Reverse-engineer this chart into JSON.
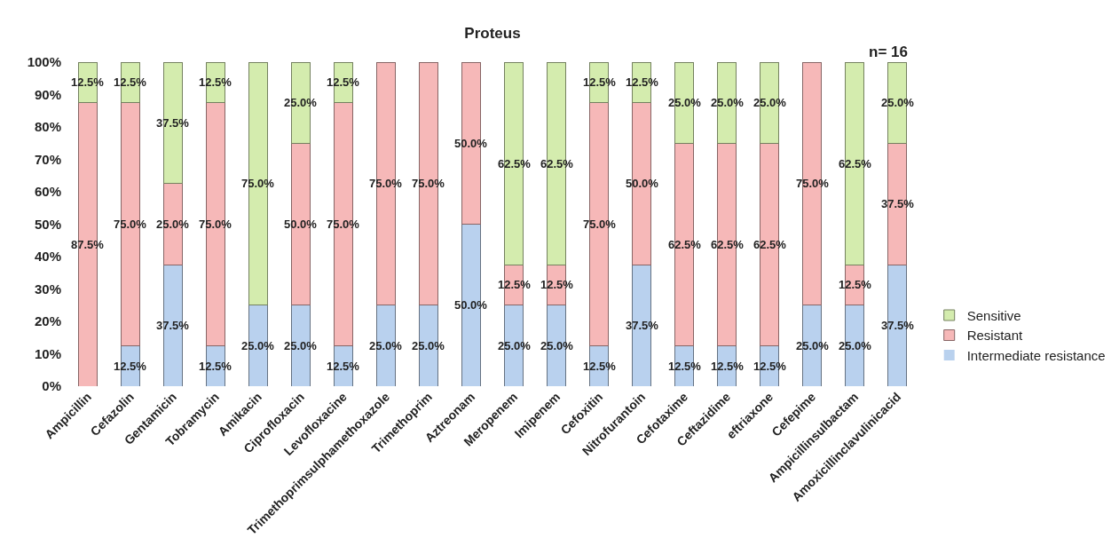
{
  "chart_data": {
    "type": "bar",
    "title": "Proteus",
    "stacked": true,
    "legend": "right",
    "annotations": [
      "n= 16"
    ],
    "categories": [
      "Ampicillin",
      "Cefazolin",
      "Gentamicin",
      "Tobramycin",
      "Amikacin",
      "Ciprofloxacin",
      "Levofloxacine",
      "Trimethoprimsulphamethoxazole",
      "Trimethoprim",
      "Aztreonam",
      "Meropenem",
      "Imipenem",
      "Cefoxitin",
      "Nitrofurantoin",
      "Cefotaxime",
      "Ceftazidime",
      "eftriaxone",
      "Cefepime",
      "Ampicillinsulbactam",
      "Amoxicillinclavulinicacid"
    ],
    "ylim": [
      0,
      100
    ],
    "yticks": [
      {
        "value": 0,
        "label": "0%"
      },
      {
        "value": 10,
        "label": "10%"
      },
      {
        "value": 20,
        "label": "20%"
      },
      {
        "value": 30,
        "label": "30%"
      },
      {
        "value": 40,
        "label": "40%"
      },
      {
        "value": 50,
        "label": "50%"
      },
      {
        "value": 60,
        "label": "60%"
      },
      {
        "value": 70,
        "label": "70%"
      },
      {
        "value": 80,
        "label": "80%"
      },
      {
        "value": 90,
        "label": "90%"
      },
      {
        "value": 100,
        "label": "100%"
      }
    ],
    "series": [
      {
        "name": "Intermediate resistance",
        "color": "#b9d1ee",
        "values": [
          0,
          12.5,
          37.5,
          12.5,
          25,
          25,
          12.5,
          25,
          25,
          50,
          25,
          25,
          12.5,
          37.5,
          12.5,
          12.5,
          12.5,
          25,
          25,
          37.5
        ],
        "value_labels": [
          null,
          "12.5%",
          "37.5%",
          "12.5%",
          "25.0%",
          "25.0%",
          "12.5%",
          "25.0%",
          "25.0%",
          "50.0%",
          "25.0%",
          "25.0%",
          "12.5%",
          "37.5%",
          "12.5%",
          "12.5%",
          "12.5%",
          "25.0%",
          "25.0%",
          "37.5%"
        ]
      },
      {
        "name": "Resistant",
        "color": "#f6b8b8",
        "values": [
          87.5,
          75,
          25,
          75,
          0,
          50,
          75,
          75,
          75,
          50,
          12.5,
          12.5,
          75,
          50,
          62.5,
          62.5,
          62.5,
          75,
          12.5,
          37.5
        ],
        "value_labels": [
          "87.5%",
          "75.0%",
          "25.0%",
          "75.0%",
          null,
          "50.0%",
          "75.0%",
          "75.0%",
          "75.0%",
          "50.0%",
          "12.5%",
          "12.5%",
          "75.0%",
          "50.0%",
          "62.5%",
          "62.5%",
          "62.5%",
          "75.0%",
          "12.5%",
          "37.5%"
        ]
      },
      {
        "name": "Sensitive",
        "color": "#d4ecae",
        "values": [
          12.5,
          12.5,
          37.5,
          12.5,
          75,
          25,
          12.5,
          0,
          0,
          0,
          62.5,
          62.5,
          12.5,
          12.5,
          25,
          25,
          25,
          0,
          62.5,
          25
        ],
        "value_labels": [
          "12.5%",
          "12.5%",
          "37.5%",
          "12.5%",
          "75.0%",
          "25.0%",
          "12.5%",
          null,
          null,
          null,
          "62.5%",
          "62.5%",
          "12.5%",
          "12.5%",
          "25.0%",
          "25.0%",
          "25.0%",
          null,
          "62.5%",
          "25.0%"
        ]
      }
    ]
  }
}
